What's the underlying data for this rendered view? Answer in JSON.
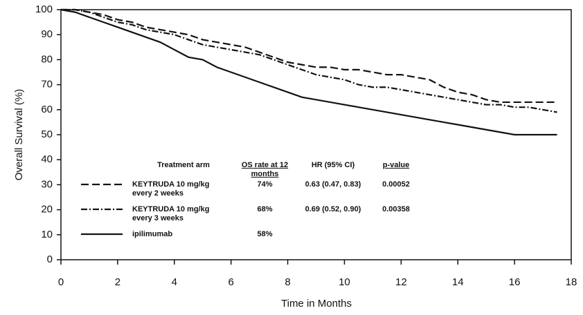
{
  "chart_data": {
    "type": "line",
    "ylabel": "Overall Survival (%)",
    "xlabel": "Time in Months",
    "xlim": [
      0,
      18
    ],
    "xticks": [
      0,
      2,
      4,
      6,
      8,
      10,
      12,
      14,
      16,
      18
    ],
    "ylim": [
      0,
      100
    ],
    "yticks": [
      0,
      10,
      20,
      30,
      40,
      50,
      60,
      70,
      80,
      90,
      100
    ],
    "grid": false,
    "x": [
      0,
      0.5,
      1,
      1.5,
      2,
      2.5,
      3,
      3.5,
      4,
      4.5,
      5,
      5.5,
      6,
      6.5,
      7,
      7.5,
      8,
      8.5,
      9,
      9.5,
      10,
      10.5,
      11,
      11.5,
      12,
      12.5,
      13,
      13.5,
      14,
      14.5,
      15,
      15.5,
      16,
      16.5,
      17,
      17.5
    ],
    "series": [
      {
        "name": "KEYTRUDA 10 mg/kg every 2 weeks",
        "color": "#111111",
        "line_style": "dashed",
        "values": [
          100,
          100,
          99,
          98,
          96,
          95,
          93,
          92,
          91,
          90,
          88,
          87,
          86,
          85,
          83,
          81,
          79,
          78,
          77,
          77,
          76,
          76,
          75,
          74,
          74,
          73,
          72,
          69,
          67,
          66,
          64,
          63,
          63,
          63,
          63,
          63
        ]
      },
      {
        "name": "KEYTRUDA 10 mg/kg every 3 weeks",
        "color": "#111111",
        "line_style": "dashdot",
        "values": [
          100,
          100,
          99,
          97,
          95,
          94,
          92,
          91,
          90,
          88,
          86,
          85,
          84,
          83,
          82,
          80,
          78,
          76,
          74,
          73,
          72,
          70,
          69,
          69,
          68,
          67,
          66,
          65,
          64,
          63,
          62,
          62,
          61,
          61,
          60,
          59
        ]
      },
      {
        "name": "ipilimumab",
        "color": "#111111",
        "line_style": "solid",
        "values": [
          100,
          99,
          97,
          95,
          93,
          91,
          89,
          87,
          84,
          81,
          80,
          77,
          75,
          73,
          71,
          69,
          67,
          65,
          64,
          63,
          62,
          61,
          60,
          59,
          58,
          57,
          56,
          55,
          54,
          53,
          52,
          51,
          50,
          50,
          50,
          50
        ]
      }
    ],
    "table": {
      "columns": [
        "Treatment arm",
        "OS rate at 12 months",
        "HR (95% CI)",
        "p-value"
      ],
      "rows": [
        [
          "74%",
          "0.63 (0.47, 0.83)",
          "0.00052"
        ],
        [
          "68%",
          "0.69 (0.52, 0.90)",
          "0.00358"
        ],
        [
          "58%"
        ]
      ]
    }
  }
}
